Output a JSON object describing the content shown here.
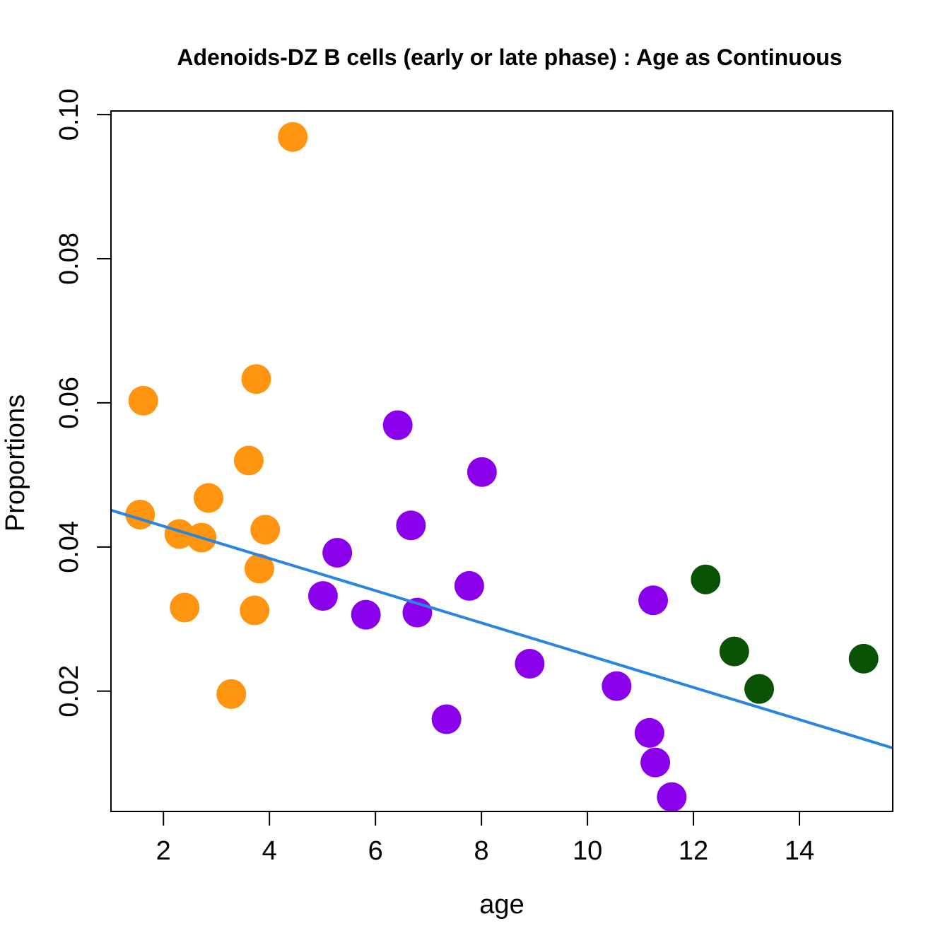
{
  "chart_data": {
    "type": "scatter",
    "title": "Adenoids-DZ B cells (early or late phase) : Age as Continuous",
    "xlabel": "age",
    "ylabel": "Proportions",
    "xlim": [
      1.01,
      15.76
    ],
    "ylim": [
      0.0033,
      0.1005
    ],
    "x_ticks": [
      2,
      4,
      6,
      8,
      10,
      12,
      14
    ],
    "x_tick_labels": [
      "2",
      "4",
      "6",
      "8",
      "10",
      "12",
      "14"
    ],
    "y_ticks": [
      0.02,
      0.04,
      0.06,
      0.08,
      0.1
    ],
    "y_tick_labels": [
      "0.02",
      "0.04",
      "0.06",
      "0.08",
      "0.10"
    ],
    "grid": false,
    "legend": null,
    "series": [
      {
        "name": "orange-group",
        "color": "#FF9410",
        "points": [
          {
            "x": 1.62,
            "y": 0.0603
          },
          {
            "x": 3.75,
            "y": 0.0633
          },
          {
            "x": 3.61,
            "y": 0.052
          },
          {
            "x": 2.85,
            "y": 0.0468
          },
          {
            "x": 1.56,
            "y": 0.0445
          },
          {
            "x": 2.3,
            "y": 0.0418
          },
          {
            "x": 2.72,
            "y": 0.0413
          },
          {
            "x": 3.92,
            "y": 0.0424
          },
          {
            "x": 3.81,
            "y": 0.037
          },
          {
            "x": 2.4,
            "y": 0.0316
          },
          {
            "x": 3.72,
            "y": 0.0312
          },
          {
            "x": 3.28,
            "y": 0.0196
          },
          {
            "x": 4.44,
            "y": 0.0969
          }
        ]
      },
      {
        "name": "purple-group",
        "color": "#8B00EA",
        "points": [
          {
            "x": 6.42,
            "y": 0.0569
          },
          {
            "x": 8.01,
            "y": 0.0504
          },
          {
            "x": 6.67,
            "y": 0.043
          },
          {
            "x": 5.28,
            "y": 0.0392
          },
          {
            "x": 5.01,
            "y": 0.0332
          },
          {
            "x": 5.82,
            "y": 0.0306
          },
          {
            "x": 6.79,
            "y": 0.0309
          },
          {
            "x": 7.77,
            "y": 0.0346
          },
          {
            "x": 7.34,
            "y": 0.0161
          },
          {
            "x": 8.91,
            "y": 0.0238
          },
          {
            "x": 10.55,
            "y": 0.0207
          },
          {
            "x": 11.24,
            "y": 0.0326
          },
          {
            "x": 11.17,
            "y": 0.0142
          },
          {
            "x": 11.28,
            "y": 0.0101
          },
          {
            "x": 11.59,
            "y": 0.0053
          }
        ]
      },
      {
        "name": "green-group",
        "color": "#0A5204",
        "points": [
          {
            "x": 12.23,
            "y": 0.0355
          },
          {
            "x": 12.77,
            "y": 0.0255
          },
          {
            "x": 13.24,
            "y": 0.0203
          },
          {
            "x": 15.21,
            "y": 0.0245
          }
        ]
      }
    ],
    "regression_line": {
      "color": "#2A85E0",
      "intercept": 0.04736,
      "slope": -0.002237
    }
  }
}
